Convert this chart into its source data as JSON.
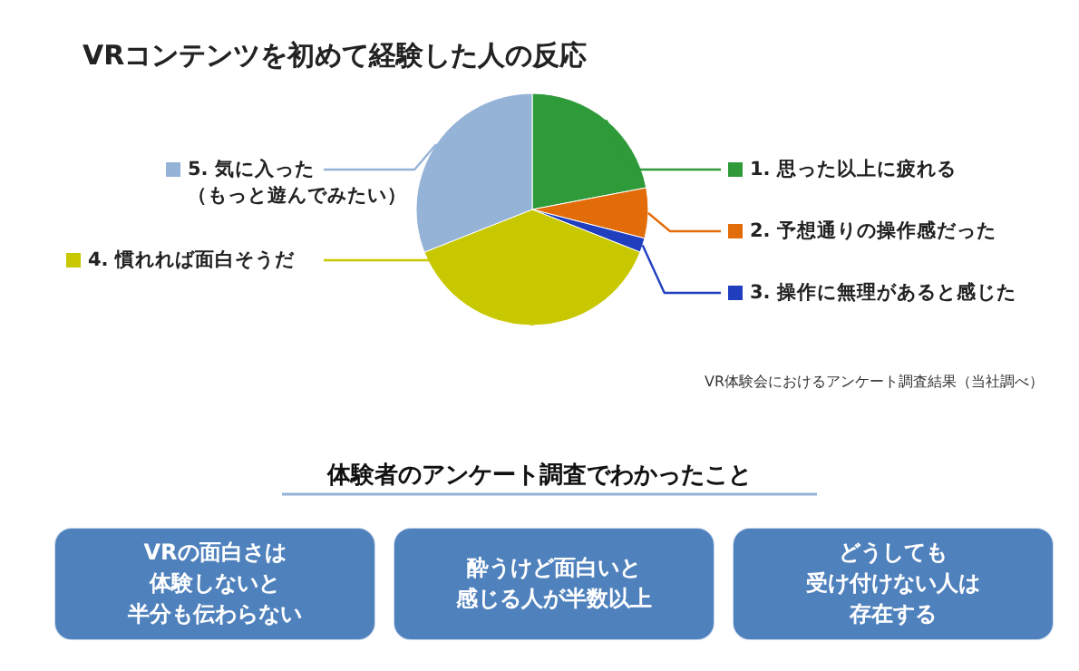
{
  "chart_data": {
    "type": "pie",
    "title": "VRコンテンツを初めて経験した人の反応",
    "categories": [
      "1. 思った以上に疲れる",
      "2. 予想通りの操作感だった",
      "3. 操作に無理があると感じた",
      "4. 慣れれば面白そうだ",
      "5. 気に入った（もっと遊んでみたい）"
    ],
    "values": [
      22,
      7,
      2,
      38,
      31
    ],
    "colors": [
      "#2e9a3a",
      "#e36c0a",
      "#1f3fbf",
      "#c8c800",
      "#95b3d7"
    ],
    "legend": "right",
    "annotations": [
      "VR体験会におけるアンケート調査結果（当社調べ）",
      "体験者のアンケート調査でわかったこと",
      "VRの面白さは",
      "体験しないと",
      "半分も伝わらない",
      "酔うけど面白いと",
      "感じる人が半数以上",
      "どうしても",
      "受け付けない人は",
      "存在する"
    ]
  }
}
